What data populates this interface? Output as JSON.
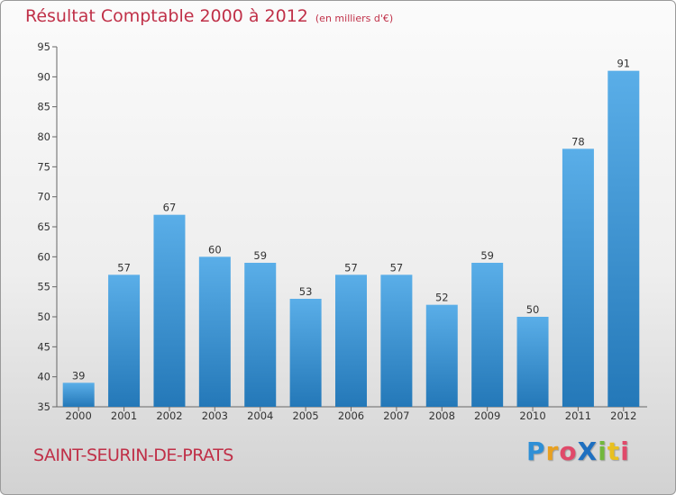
{
  "chart_data": {
    "type": "bar",
    "title": "Résultat Comptable 2000 à 2012",
    "unit": "(en milliers d'€)",
    "xlabel": "",
    "ylabel": "",
    "ylim": [
      35,
      95
    ],
    "yticks": [
      35,
      40,
      45,
      50,
      55,
      60,
      65,
      70,
      75,
      80,
      85,
      90,
      95
    ],
    "grid": false,
    "categories": [
      "2000",
      "2001",
      "2002",
      "2003",
      "2004",
      "2005",
      "2006",
      "2007",
      "2008",
      "2009",
      "2010",
      "2011",
      "2012"
    ],
    "values": [
      39,
      57,
      67,
      60,
      59,
      53,
      57,
      57,
      52,
      59,
      50,
      78,
      91
    ]
  },
  "commune": "SAINT-SEURIN-DE-PRATS",
  "logo": {
    "text": "ProXiti",
    "letters": [
      "P",
      "r",
      "o",
      "X",
      "i",
      "t",
      "i"
    ],
    "colors": [
      "#2e8fd6",
      "#e8a020",
      "#e04a6a",
      "#1e6fc0",
      "#72b83c",
      "#e8c020",
      "#e04a6a"
    ]
  },
  "colors": {
    "bar_light": "#5aaee8",
    "bar_dark": "#2478b8",
    "title": "#c03048"
  }
}
